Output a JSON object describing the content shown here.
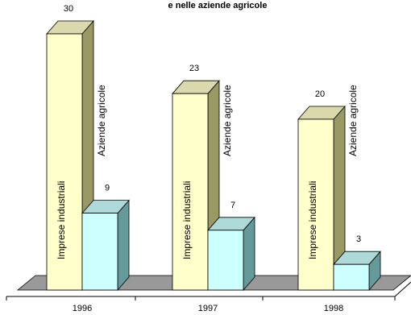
{
  "chart_data": {
    "type": "bar",
    "title": "e nelle aziende agricole",
    "categories": [
      "1996",
      "1997",
      "1998"
    ],
    "series": [
      {
        "name": "Imprese industriali",
        "values": [
          30,
          23,
          20
        ],
        "color": "#ffffcc"
      },
      {
        "name": "Aziende agricole",
        "values": [
          9,
          7,
          3
        ],
        "color": "#ccffff"
      }
    ],
    "ylim": [
      0,
      30
    ],
    "grid": false,
    "legend": "none",
    "style": "3d"
  }
}
